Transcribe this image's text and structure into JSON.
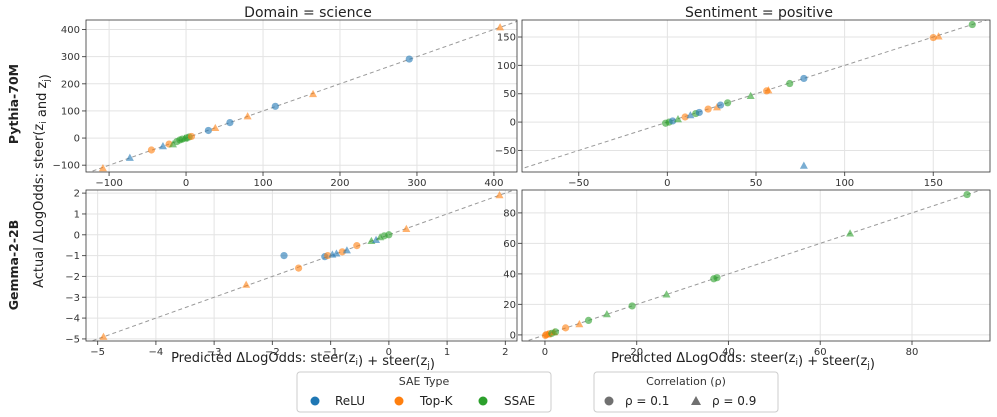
{
  "figure": {
    "col_titles": [
      "Domain = science",
      "Sentiment = positive"
    ],
    "row_labels": [
      "Pythia-70M",
      "Gemma-2-2B"
    ],
    "ylabel": "Actual ΔLogOdds: steer(z_i and z_j)",
    "xlabel": "Predicted ΔLogOdds: steer(z_i) + steer(z_j)"
  },
  "legends": {
    "sae_type": {
      "title": "SAE Type",
      "items": [
        {
          "label": "ReLU",
          "color": "#1f77b4"
        },
        {
          "label": "Top-K",
          "color": "#ff7f0e"
        },
        {
          "label": "SSAE",
          "color": "#2ca02c"
        }
      ]
    },
    "correlation": {
      "title": "Correlation (ρ)",
      "items": [
        {
          "label": "ρ = 0.1",
          "marker": "circle"
        },
        {
          "label": "ρ = 0.9",
          "marker": "triangle"
        }
      ]
    }
  },
  "chart_data": [
    {
      "type": "scatter",
      "title": "Domain = science",
      "row": "Pythia-70M",
      "xlim": [
        -130,
        430
      ],
      "ylim": [
        -125,
        435
      ],
      "xticks": [
        -100,
        0,
        100,
        200,
        300,
        400
      ],
      "yticks": [
        -100,
        0,
        100,
        200,
        300,
        400
      ],
      "reference_line": "y = x",
      "points": [
        {
          "x": -108,
          "y": -111,
          "sae": "Top-K",
          "rho": 0.9
        },
        {
          "x": -73,
          "y": -73,
          "sae": "ReLU",
          "rho": 0.9
        },
        {
          "x": -45,
          "y": -44,
          "sae": "Top-K",
          "rho": 0.1
        },
        {
          "x": -30,
          "y": -30,
          "sae": "ReLU",
          "rho": 0.9
        },
        {
          "x": -22,
          "y": -22,
          "sae": "Top-K",
          "rho": 0.1
        },
        {
          "x": -17,
          "y": -23,
          "sae": "SSAE",
          "rho": 0.9
        },
        {
          "x": -12,
          "y": -13,
          "sae": "SSAE",
          "rho": 0.1
        },
        {
          "x": -8,
          "y": -7,
          "sae": "SSAE",
          "rho": 0.1
        },
        {
          "x": -5,
          "y": -4,
          "sae": "SSAE",
          "rho": 0.1
        },
        {
          "x": -2,
          "y": -2,
          "sae": "SSAE",
          "rho": 0.9
        },
        {
          "x": 1,
          "y": 1,
          "sae": "SSAE",
          "rho": 0.1
        },
        {
          "x": 4,
          "y": 4,
          "sae": "SSAE",
          "rho": 0.1
        },
        {
          "x": 7,
          "y": 6,
          "sae": "Top-K",
          "rho": 0.1
        },
        {
          "x": 29,
          "y": 28,
          "sae": "ReLU",
          "rho": 0.1
        },
        {
          "x": 38,
          "y": 37,
          "sae": "Top-K",
          "rho": 0.9
        },
        {
          "x": 57,
          "y": 57,
          "sae": "ReLU",
          "rho": 0.1
        },
        {
          "x": 80,
          "y": 80,
          "sae": "Top-K",
          "rho": 0.9
        },
        {
          "x": 116,
          "y": 117,
          "sae": "ReLU",
          "rho": 0.1
        },
        {
          "x": 165,
          "y": 162,
          "sae": "Top-K",
          "rho": 0.9
        },
        {
          "x": 290,
          "y": 291,
          "sae": "ReLU",
          "rho": 0.1
        },
        {
          "x": 408,
          "y": 408,
          "sae": "Top-K",
          "rho": 0.9
        }
      ]
    },
    {
      "type": "scatter",
      "title": "Sentiment = positive",
      "row": "Pythia-70M",
      "xlim": [
        -82,
        182
      ],
      "ylim": [
        -88,
        180
      ],
      "xticks": [
        -50,
        0,
        50,
        100,
        150
      ],
      "yticks": [
        -50,
        0,
        50,
        100,
        150
      ],
      "reference_line": "y = x",
      "points": [
        {
          "x": -1,
          "y": -2,
          "sae": "SSAE",
          "rho": 0.1
        },
        {
          "x": 1,
          "y": 0,
          "sae": "SSAE",
          "rho": 0.1
        },
        {
          "x": 3,
          "y": 2,
          "sae": "ReLU",
          "rho": 0.1
        },
        {
          "x": 6,
          "y": 5,
          "sae": "SSAE",
          "rho": 0.9
        },
        {
          "x": 10,
          "y": 9,
          "sae": "Top-K",
          "rho": 0.1
        },
        {
          "x": 13,
          "y": 12,
          "sae": "ReLU",
          "rho": 0.9
        },
        {
          "x": 16,
          "y": 15,
          "sae": "SSAE",
          "rho": 0.1
        },
        {
          "x": 18,
          "y": 17,
          "sae": "ReLU",
          "rho": 0.1
        },
        {
          "x": 23,
          "y": 23,
          "sae": "Top-K",
          "rho": 0.1
        },
        {
          "x": 28,
          "y": 26,
          "sae": "Top-K",
          "rho": 0.9
        },
        {
          "x": 30,
          "y": 30,
          "sae": "ReLU",
          "rho": 0.1
        },
        {
          "x": 34,
          "y": 34,
          "sae": "SSAE",
          "rho": 0.1
        },
        {
          "x": 47,
          "y": 46,
          "sae": "SSAE",
          "rho": 0.9
        },
        {
          "x": 56,
          "y": 55,
          "sae": "Top-K",
          "rho": 0.1
        },
        {
          "x": 57,
          "y": 56,
          "sae": "Top-K",
          "rho": 0.9
        },
        {
          "x": 69,
          "y": 68,
          "sae": "SSAE",
          "rho": 0.1
        },
        {
          "x": 77,
          "y": 77,
          "sae": "ReLU",
          "rho": 0.1
        },
        {
          "x": 77,
          "y": -77,
          "sae": "ReLU",
          "rho": 0.9
        },
        {
          "x": 150,
          "y": 149,
          "sae": "Top-K",
          "rho": 0.1
        },
        {
          "x": 153,
          "y": 151,
          "sae": "Top-K",
          "rho": 0.9
        },
        {
          "x": 172,
          "y": 172,
          "sae": "SSAE",
          "rho": 0.1
        }
      ]
    },
    {
      "type": "scatter",
      "title": "",
      "row": "Gemma-2-2B",
      "xlim": [
        -5.2,
        2.2
      ],
      "ylim": [
        -5.1,
        2.15
      ],
      "xticks": [
        -5,
        -4,
        -3,
        -2,
        -1,
        0,
        1,
        2
      ],
      "yticks": [
        -5,
        -4,
        -3,
        -2,
        -1,
        0,
        1,
        2
      ],
      "reference_line": "y = x",
      "points": [
        {
          "x": -4.9,
          "y": -4.9,
          "sae": "Top-K",
          "rho": 0.9
        },
        {
          "x": -2.45,
          "y": -2.4,
          "sae": "Top-K",
          "rho": 0.9
        },
        {
          "x": -1.8,
          "y": -1.0,
          "sae": "ReLU",
          "rho": 0.1
        },
        {
          "x": -1.55,
          "y": -1.6,
          "sae": "Top-K",
          "rho": 0.1
        },
        {
          "x": -1.1,
          "y": -1.05,
          "sae": "ReLU",
          "rho": 0.1
        },
        {
          "x": -1.05,
          "y": -1.0,
          "sae": "Top-K",
          "rho": 0.1
        },
        {
          "x": -0.97,
          "y": -0.95,
          "sae": "ReLU",
          "rho": 0.9
        },
        {
          "x": -0.9,
          "y": -0.9,
          "sae": "ReLU",
          "rho": 0.9
        },
        {
          "x": -0.8,
          "y": -0.82,
          "sae": "Top-K",
          "rho": 0.1
        },
        {
          "x": -0.72,
          "y": -0.75,
          "sae": "ReLU",
          "rho": 0.9
        },
        {
          "x": -0.55,
          "y": -0.52,
          "sae": "Top-K",
          "rho": 0.1
        },
        {
          "x": -0.3,
          "y": -0.3,
          "sae": "SSAE",
          "rho": 0.9
        },
        {
          "x": -0.22,
          "y": -0.25,
          "sae": "ReLU",
          "rho": 0.9
        },
        {
          "x": -0.15,
          "y": -0.12,
          "sae": "SSAE",
          "rho": 0.9
        },
        {
          "x": -0.08,
          "y": -0.05,
          "sae": "SSAE",
          "rho": 0.1
        },
        {
          "x": 0.0,
          "y": 0.0,
          "sae": "SSAE",
          "rho": 0.1
        },
        {
          "x": 0.3,
          "y": 0.28,
          "sae": "Top-K",
          "rho": 0.9
        },
        {
          "x": 1.9,
          "y": 1.9,
          "sae": "Top-K",
          "rho": 0.9
        }
      ]
    },
    {
      "type": "scatter",
      "title": "",
      "row": "Gemma-2-2B",
      "xlim": [
        -5,
        97
      ],
      "ylim": [
        -4,
        95
      ],
      "xticks": [
        0,
        20,
        40,
        60,
        80
      ],
      "yticks": [
        0,
        20,
        40,
        60,
        80
      ],
      "reference_line": "y = x",
      "points": [
        {
          "x": 0.1,
          "y": -0.4,
          "sae": "Top-K",
          "rho": 0.1
        },
        {
          "x": 0.3,
          "y": 0.2,
          "sae": "Top-K",
          "rho": 0.1
        },
        {
          "x": 0.6,
          "y": 0.3,
          "sae": "Top-K",
          "rho": 0.9
        },
        {
          "x": 1.0,
          "y": 0.8,
          "sae": "Top-K",
          "rho": 0.1
        },
        {
          "x": 1.5,
          "y": 1.0,
          "sae": "SSAE",
          "rho": 0.1
        },
        {
          "x": 2.0,
          "y": 1.7,
          "sae": "Top-K",
          "rho": 0.9
        },
        {
          "x": 2.3,
          "y": 2.0,
          "sae": "SSAE",
          "rho": 0.1
        },
        {
          "x": 4.5,
          "y": 4.6,
          "sae": "Top-K",
          "rho": 0.1
        },
        {
          "x": 7.5,
          "y": 7.0,
          "sae": "Top-K",
          "rho": 0.9
        },
        {
          "x": 9.5,
          "y": 9.5,
          "sae": "SSAE",
          "rho": 0.1
        },
        {
          "x": 13.5,
          "y": 13.5,
          "sae": "SSAE",
          "rho": 0.9
        },
        {
          "x": 19,
          "y": 19,
          "sae": "SSAE",
          "rho": 0.1
        },
        {
          "x": 26.5,
          "y": 26.5,
          "sae": "SSAE",
          "rho": 0.9
        },
        {
          "x": 36.8,
          "y": 36.8,
          "sae": "SSAE",
          "rho": 0.1
        },
        {
          "x": 37.5,
          "y": 37.5,
          "sae": "SSAE",
          "rho": 0.1
        },
        {
          "x": 66.5,
          "y": 66.5,
          "sae": "SSAE",
          "rho": 0.9
        },
        {
          "x": 92,
          "y": 92,
          "sae": "SSAE",
          "rho": 0.1
        }
      ]
    }
  ]
}
